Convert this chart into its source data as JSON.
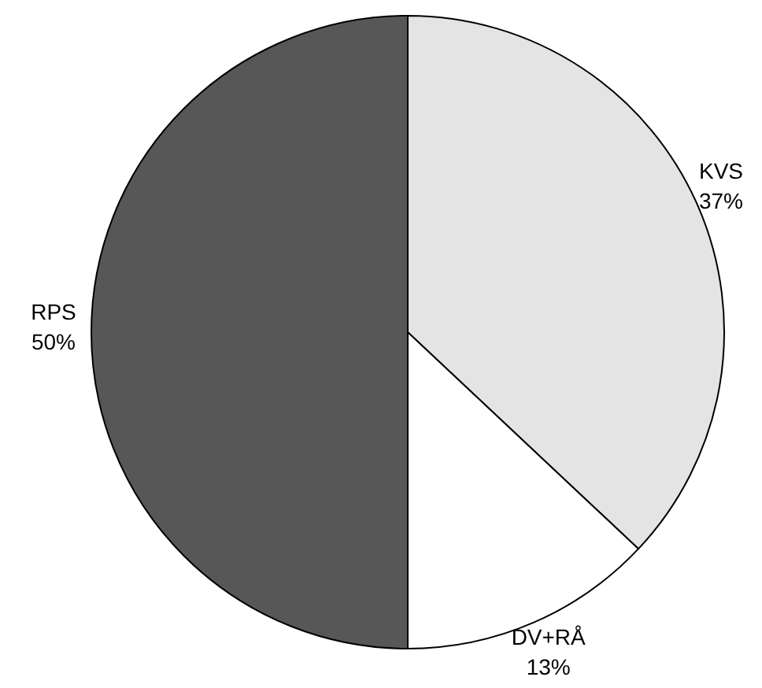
{
  "chart_data": {
    "type": "pie",
    "categories": [
      "KVS",
      "DV+RÅ",
      "RPS"
    ],
    "values": [
      37,
      13,
      50
    ],
    "colors": [
      "#e4e4e4",
      "#ffffff",
      "#575757"
    ],
    "value_labels": [
      "37%",
      "13%",
      "50%"
    ]
  }
}
